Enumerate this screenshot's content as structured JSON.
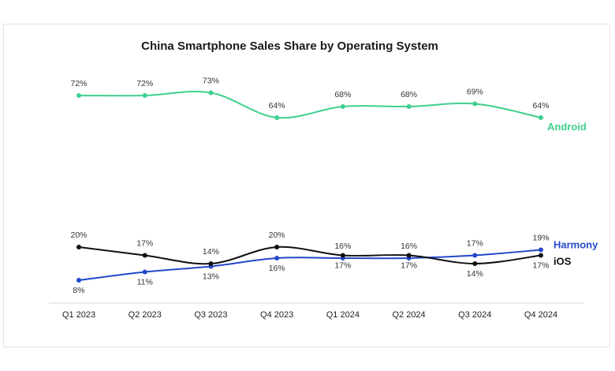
{
  "chart_data": {
    "type": "line",
    "title": "China Smartphone Sales Share by Operating System",
    "categories": [
      "Q1 2023",
      "Q2 2023",
      "Q3 2023",
      "Q4 2023",
      "Q1 2024",
      "Q2 2024",
      "Q3 2024",
      "Q4 2024"
    ],
    "series": [
      {
        "name": "Android",
        "color": "#3ecf8e",
        "values": [
          72,
          72,
          73,
          64,
          68,
          68,
          69,
          64
        ],
        "labels": [
          "72%",
          "72%",
          "73%",
          "64%",
          "68%",
          "68%",
          "69%",
          "64%"
        ]
      },
      {
        "name": "Harmony",
        "color": "#2348c9",
        "values": [
          8,
          11,
          13,
          16,
          16,
          16,
          17,
          19
        ],
        "labels": [
          "8%",
          "11%",
          "13%",
          "16%",
          "16%",
          "16%",
          "17%",
          "19%"
        ]
      },
      {
        "name": "iOS",
        "color": "#111111",
        "values": [
          20,
          17,
          14,
          20,
          17,
          17,
          14,
          17
        ],
        "labels": [
          "20%",
          "17%",
          "14%",
          "20%",
          "17%",
          "17%",
          "14%",
          "17%"
        ]
      }
    ],
    "xlabel": "",
    "ylabel": "",
    "grid": false,
    "legend": "inline labels at right end of each line"
  }
}
